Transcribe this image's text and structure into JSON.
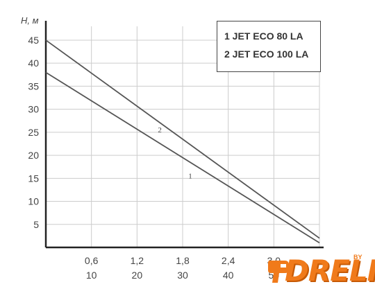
{
  "chart_data": {
    "type": "line",
    "ylabel": "Н, м",
    "y_ticks": [
      5,
      10,
      15,
      20,
      25,
      30,
      35,
      40,
      45
    ],
    "x_ticks_top": [
      "0,6",
      "1,2",
      "1,8",
      "2,4",
      "3,0"
    ],
    "x_ticks_bottom": [
      "10",
      "20",
      "30",
      "40",
      "50"
    ],
    "x_tick_values": [
      0.6,
      1.2,
      1.8,
      2.4,
      3.0
    ],
    "xlim": [
      0,
      3.6
    ],
    "ylim": [
      0,
      48
    ],
    "grid": true,
    "legend": [
      "1 JET ECO 80 LA",
      "2 JET ECO 100 LA"
    ],
    "series": [
      {
        "name": "1",
        "x": [
          0,
          3.6
        ],
        "y": [
          38,
          1
        ]
      },
      {
        "name": "2",
        "x": [
          0,
          3.6
        ],
        "y": [
          45,
          2
        ]
      }
    ],
    "curve_labels": [
      {
        "text": "1",
        "x": 1.9,
        "y": 15
      },
      {
        "text": "2",
        "x": 1.5,
        "y": 25
      }
    ],
    "colors": {
      "line": "#555555",
      "grid": "#cccccc",
      "axis": "#222222"
    }
  },
  "logo": {
    "text": "DRELI",
    "sup": "BY"
  }
}
